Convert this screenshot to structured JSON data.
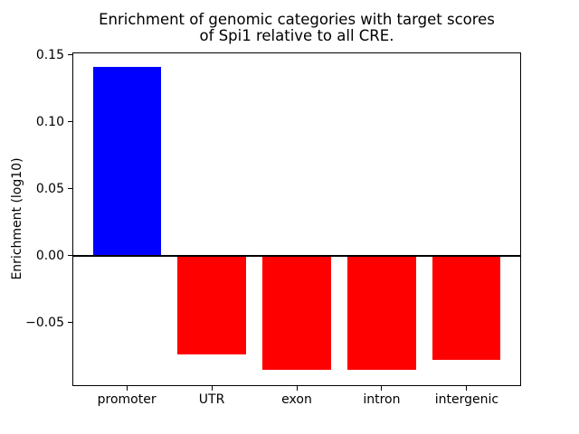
{
  "figure": {
    "background": "#ffffff"
  },
  "chart_data": {
    "type": "bar",
    "title": "Enrichment of genomic categories with target scores\nof Spi1 relative to all CRE.",
    "ylabel": "Enrichment (log10)",
    "xlabel": "",
    "categories": [
      "promoter",
      "UTR",
      "exon",
      "intron",
      "intergenic"
    ],
    "values": [
      0.141,
      -0.074,
      -0.085,
      -0.085,
      -0.078
    ],
    "bar_colors": [
      "#0000ff",
      "#ff0000",
      "#ff0000",
      "#ff0000",
      "#ff0000"
    ],
    "bar_width_fraction": 0.8,
    "x_margin_fraction": 0.64,
    "ylim": [
      -0.0975,
      0.152
    ],
    "yticks": [
      0.15,
      0.1,
      0.05,
      0.0,
      -0.05
    ],
    "ytick_labels": [
      "0.15",
      "0.10",
      "0.05",
      "0.00",
      "−0.05"
    ],
    "grid": false,
    "legend": null,
    "zero_line": {
      "color": "#000000",
      "width": 2
    },
    "axis_color": "#000000",
    "positive_color": "#0000ff",
    "negative_color": "#ff0000"
  }
}
